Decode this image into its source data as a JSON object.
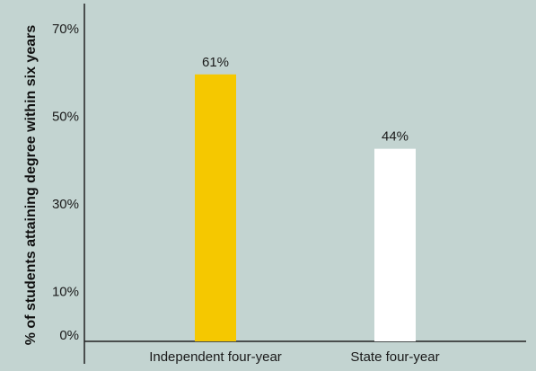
{
  "chart_data": {
    "type": "bar",
    "title": "",
    "xlabel": "",
    "ylabel": "% of students attaining degree within six years",
    "categories": [
      "Independent four-year",
      "State four-year"
    ],
    "values": [
      61,
      44
    ],
    "data_labels": [
      "61%",
      "44%"
    ],
    "ylim": [
      0,
      78
    ],
    "y_ticks": [
      0,
      10,
      30,
      50,
      70
    ],
    "y_tick_labels": [
      "0%",
      "10%",
      "30%",
      "50%",
      "70%"
    ],
    "grid": false,
    "bar_colors": [
      "#f5c800",
      "#ffffff"
    ],
    "background_color": "#c3d4d1",
    "axis_color": "#222222"
  }
}
